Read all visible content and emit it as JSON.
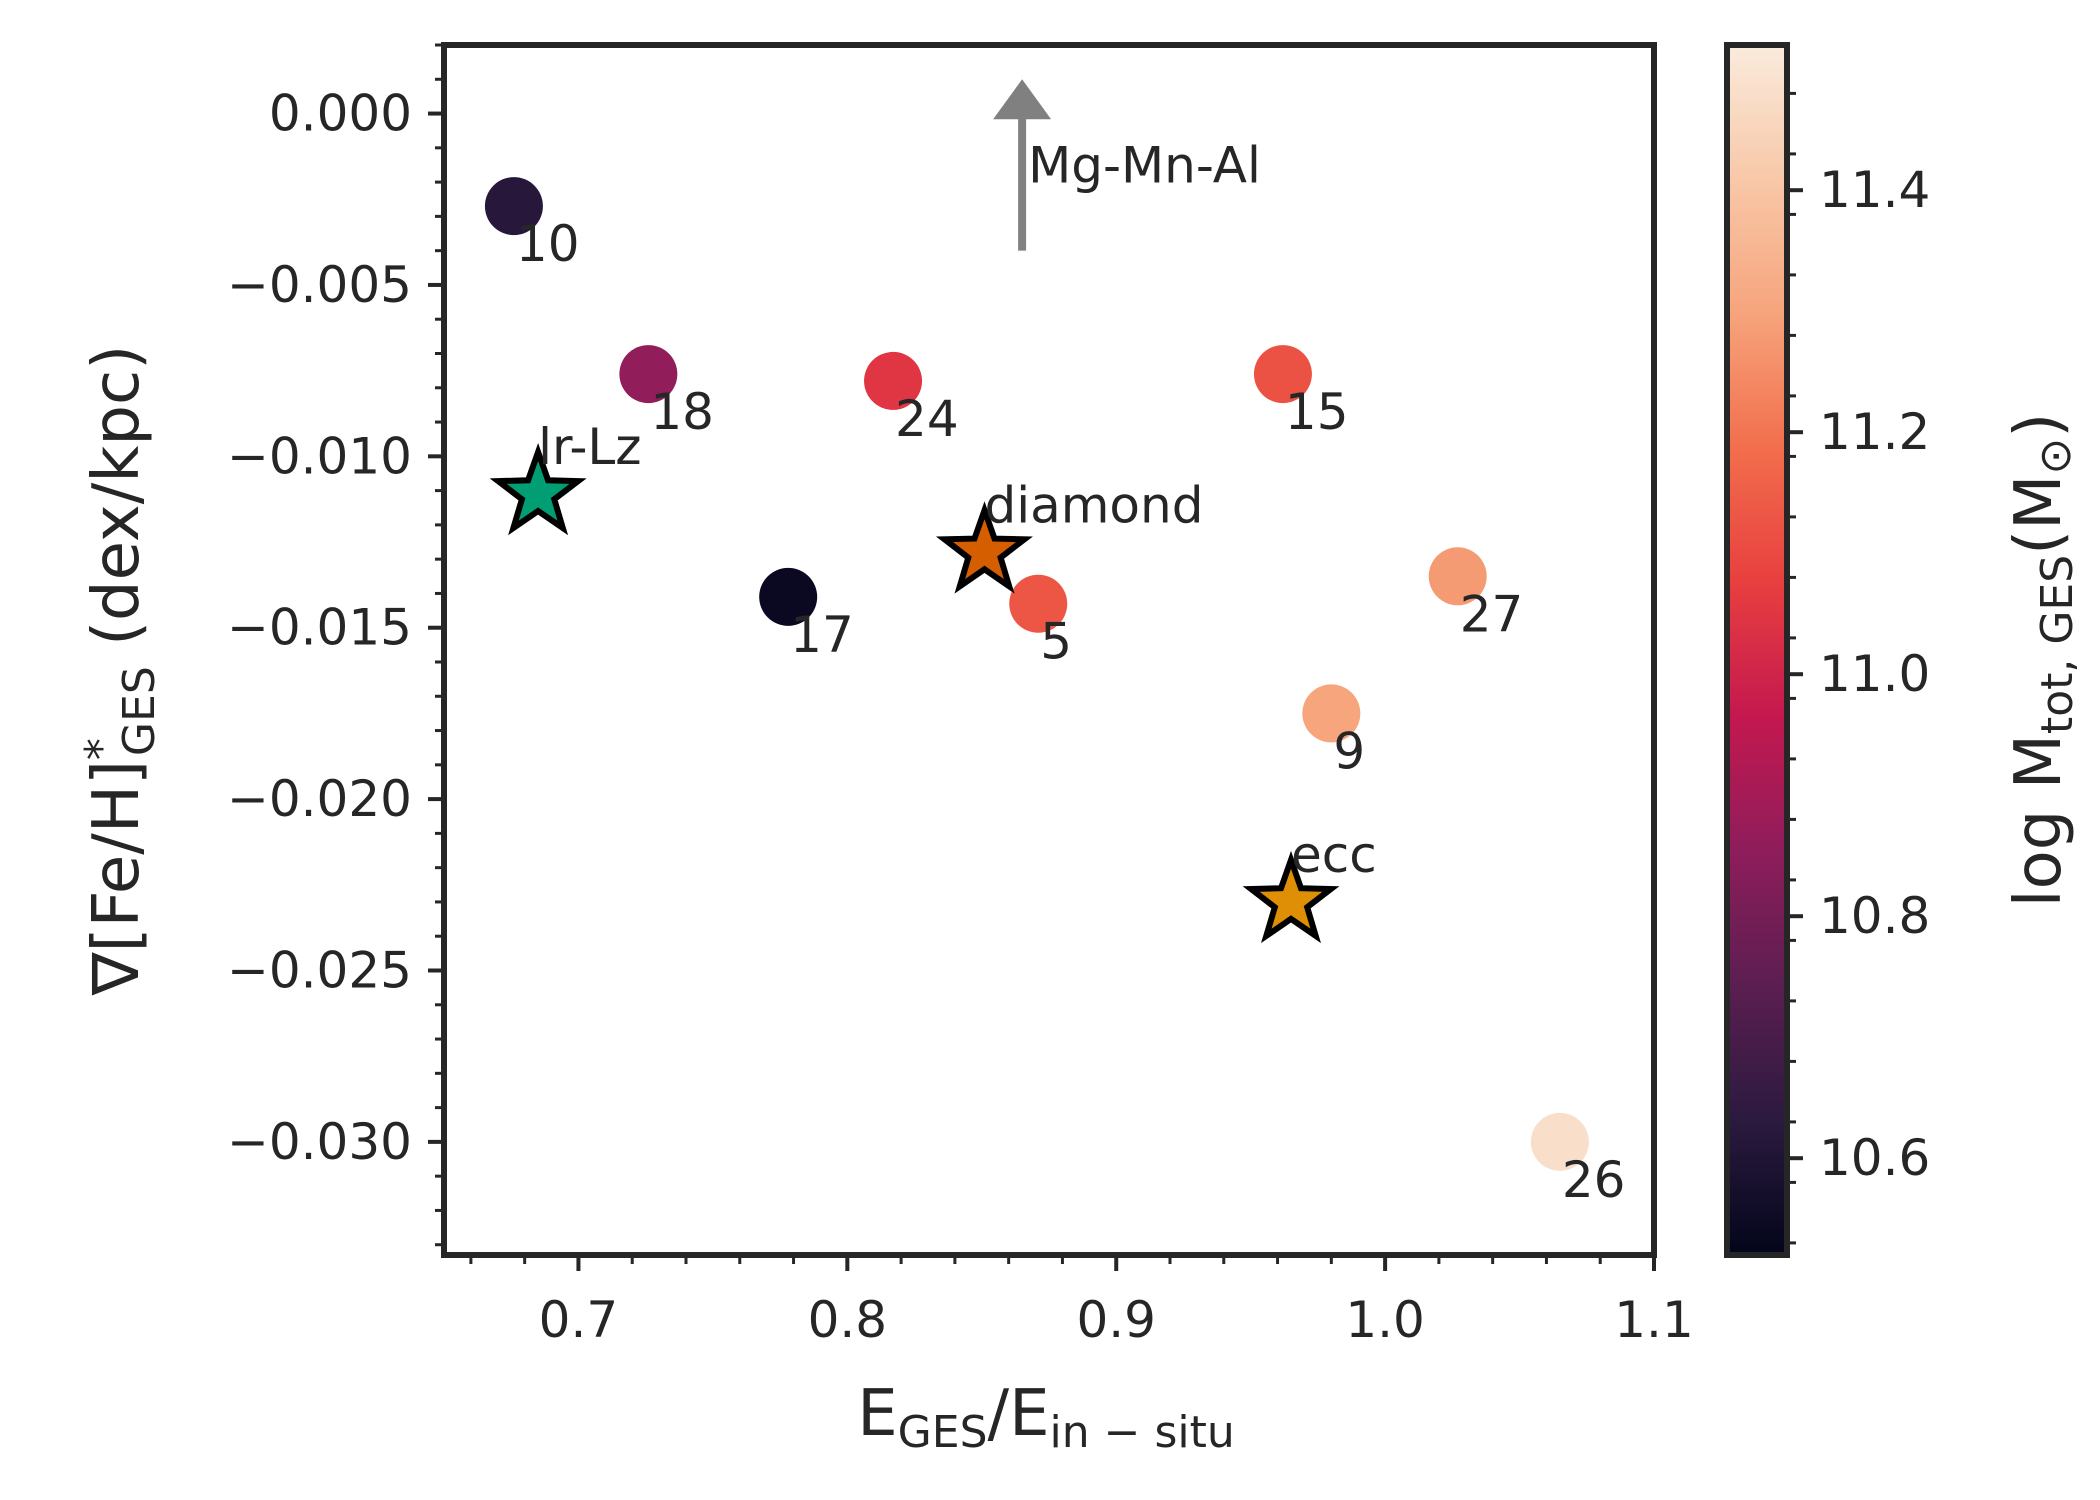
{
  "chart_data": {
    "type": "scatter",
    "xlabel": {
      "base": "E",
      "sub": "GES",
      "rest": "/E",
      "sub2": "in − situ"
    },
    "ylabel": {
      "pre": "∇[Fe/H]",
      "sup": "*",
      "sub": "GES",
      "post": " (dex/kpc)"
    },
    "xlim": [
      0.65,
      1.1
    ],
    "ylim": [
      -0.0333,
      0.002
    ],
    "xticks": [
      0.7,
      0.8,
      0.9,
      1.0,
      1.1
    ],
    "xtick_labels": [
      "0.7",
      "0.8",
      "0.9",
      "1.0",
      "1.1"
    ],
    "yticks": [
      0.0,
      -0.005,
      -0.01,
      -0.015,
      -0.02,
      -0.025,
      -0.03
    ],
    "ytick_labels": [
      "0.000",
      "−0.005",
      "−0.010",
      "−0.015",
      "−0.020",
      "−0.025",
      "−0.030"
    ],
    "grid": false,
    "colorbar": {
      "label": {
        "pre": "log M",
        "sub": "tot, GES",
        "post": "(M",
        "sym": "⊙",
        "end": ")"
      },
      "range": [
        10.52,
        11.52
      ],
      "ticks": [
        10.6,
        10.8,
        11.0,
        11.2,
        11.4
      ],
      "tick_labels": [
        "10.6",
        "10.8",
        "11.0",
        "11.2",
        "11.4"
      ],
      "colormap": "rocket",
      "stops": [
        "#03051a",
        "#2b1a3f",
        "#5b1e51",
        "#8e1d5b",
        "#c4184f",
        "#e83f3f",
        "#f26e4c",
        "#f6a47c",
        "#f8c8a8",
        "#faebdd"
      ]
    },
    "points": [
      {
        "label": "10",
        "x": 0.676,
        "y": -0.0027,
        "logM": 10.62
      },
      {
        "label": "18",
        "x": 0.726,
        "y": -0.0076,
        "logM": 10.86
      },
      {
        "label": "24",
        "x": 0.817,
        "y": -0.0078,
        "logM": 11.05
      },
      {
        "label": "15",
        "x": 0.962,
        "y": -0.0076,
        "logM": 11.12
      },
      {
        "label": "17",
        "x": 0.778,
        "y": -0.0141,
        "logM": 10.54
      },
      {
        "label": "5",
        "x": 0.871,
        "y": -0.0143,
        "logM": 11.13
      },
      {
        "label": "27",
        "x": 1.027,
        "y": -0.0135,
        "logM": 11.28
      },
      {
        "label": "9",
        "x": 0.98,
        "y": -0.0175,
        "logM": 11.3
      },
      {
        "label": "26",
        "x": 1.065,
        "y": -0.03,
        "logM": 11.48
      }
    ],
    "stars": [
      {
        "label": "lr-Lz",
        "x": 0.685,
        "y": -0.0111,
        "color": "#029e73"
      },
      {
        "label": "diamond",
        "x": 0.851,
        "y": -0.0128,
        "color": "#d55e00"
      },
      {
        "label": "ecc",
        "x": 0.965,
        "y": -0.023,
        "color": "#de8f05"
      }
    ],
    "arrow": {
      "label": "Mg-Mn-Al",
      "x": 0.865,
      "y_from": -0.004,
      "y_to": 0.001,
      "color": "#808080"
    }
  }
}
